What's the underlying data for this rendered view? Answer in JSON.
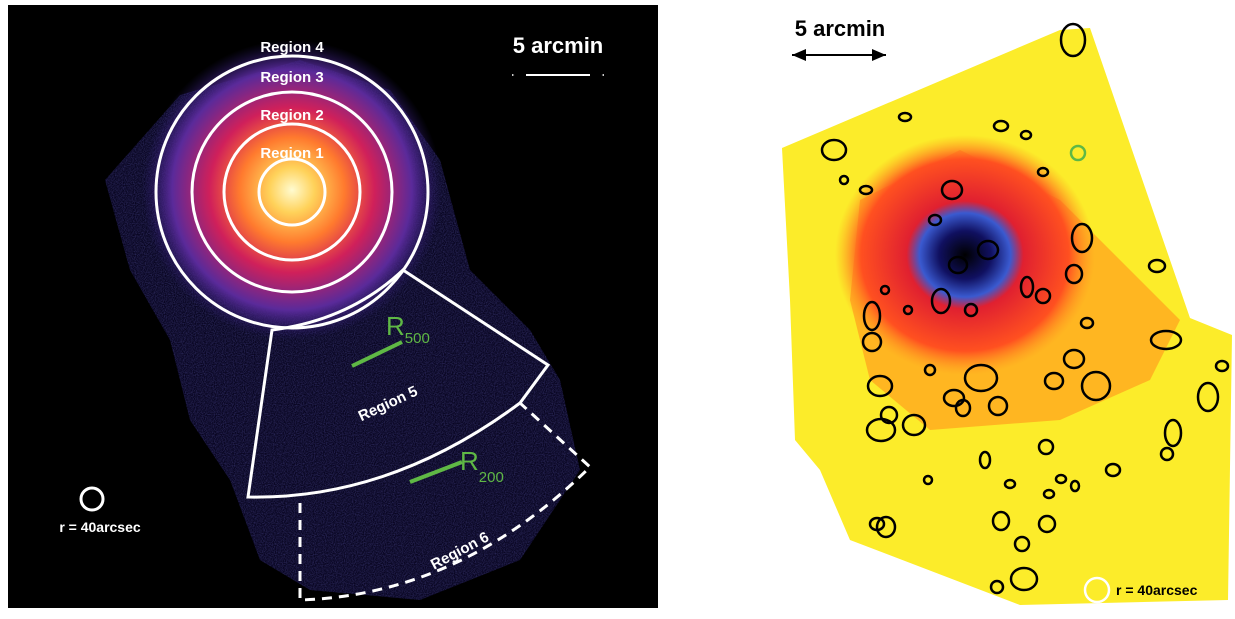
{
  "left": {
    "scale_label": "5 arcmin",
    "regions": [
      "Region 1",
      "Region 2",
      "Region 3",
      "Region 4",
      "Region 5",
      "Region 6"
    ],
    "radii": [
      {
        "symbol": "R",
        "subscript": "500"
      },
      {
        "symbol": "R",
        "subscript": "200"
      }
    ],
    "psf_label": "r = 40arcsec"
  },
  "right": {
    "scale_label": "5 arcmin",
    "psf_label": "r = 40arcsec"
  }
}
